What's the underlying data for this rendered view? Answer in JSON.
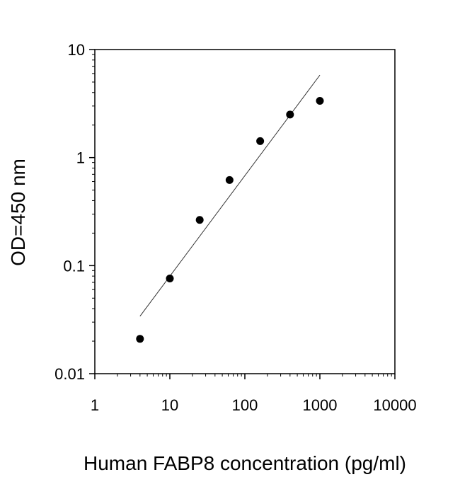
{
  "chart_data": {
    "type": "scatter",
    "title": "",
    "xlabel": "Human FABP8 concentration (pg/ml)",
    "ylabel": "OD=450 nm",
    "xscale": "log",
    "yscale": "log",
    "xlim": [
      1,
      10000
    ],
    "ylim": [
      0.01,
      10
    ],
    "grid": false,
    "legend": "none",
    "x_tick_labels": [
      "1",
      "10",
      "100",
      "1000",
      "10000"
    ],
    "x_tick_values": [
      1,
      10,
      100,
      1000,
      10000
    ],
    "y_tick_labels": [
      "0.01",
      "0.1",
      "1",
      "10"
    ],
    "y_tick_values": [
      0.01,
      0.1,
      1,
      10
    ],
    "series": [
      {
        "x": [
          4,
          10,
          25,
          62.5,
          160,
          400,
          1000
        ],
        "y": [
          0.021,
          0.076,
          0.265,
          0.62,
          1.42,
          2.5,
          3.35
        ]
      }
    ],
    "fit_line": {
      "x": [
        4,
        1000
      ],
      "y": [
        0.034,
        5.8
      ]
    },
    "colors": {
      "points": "#000000",
      "fit_line": "#333333",
      "axes": "#000000"
    }
  }
}
